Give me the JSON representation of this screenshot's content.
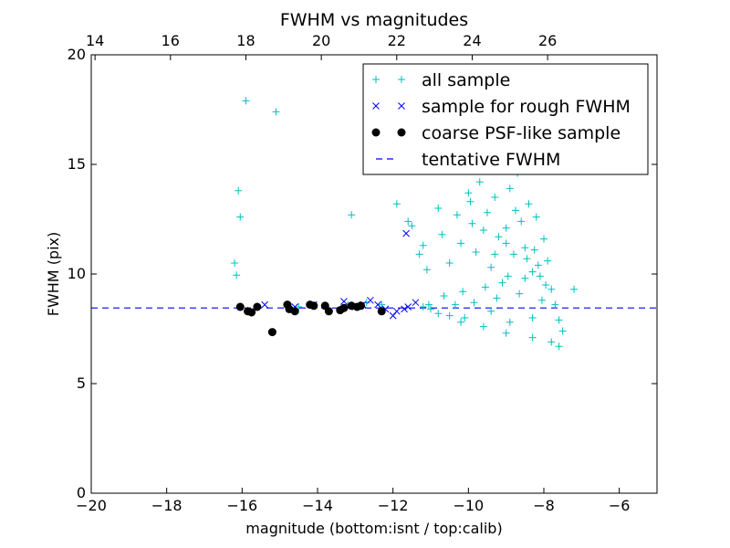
{
  "chart_data": {
    "type": "scatter",
    "title": "FWHM vs magnitudes",
    "xlabel": "magnitude (bottom:isnt / top:calib)",
    "ylabel": "FWHM (pix)",
    "xlim": [
      -20,
      -5
    ],
    "ylim": [
      0,
      20
    ],
    "x_ticks": [
      -20,
      -18,
      -16,
      -14,
      -12,
      -10,
      -8,
      -6
    ],
    "x_tick_labels": [
      "−20",
      "−18",
      "−16",
      "−14",
      "−12",
      "−10",
      "−8",
      "−6"
    ],
    "y_ticks": [
      0,
      5,
      10,
      15,
      20
    ],
    "y_tick_labels": [
      "0",
      "5",
      "10",
      "15",
      "20"
    ],
    "top_axis": {
      "offset": 33.9,
      "ticks": [
        14,
        16,
        18,
        20,
        22,
        24,
        26
      ],
      "tick_labels": [
        "14",
        "16",
        "18",
        "20",
        "22",
        "24",
        "26"
      ]
    },
    "grid": false,
    "legend_position": "upper-right",
    "legend": [
      {
        "label": "all sample",
        "marker": "plus",
        "color": "#00bfbf"
      },
      {
        "label": "sample for rough FWHM",
        "marker": "x",
        "color": "#0000ff"
      },
      {
        "label": "coarse PSF-like sample",
        "marker": "dot",
        "color": "#000000"
      },
      {
        "label": "tentative FWHM",
        "marker": "dash",
        "color": "#0000ff"
      }
    ],
    "series": [
      {
        "name": "all sample",
        "marker": "plus",
        "color": "#00bfbf",
        "points": [
          [
            -15.9,
            17.9
          ],
          [
            -15.1,
            17.4
          ],
          [
            -16.1,
            13.8
          ],
          [
            -16.05,
            12.6
          ],
          [
            -16.2,
            10.5
          ],
          [
            -16.15,
            9.95
          ],
          [
            -13.1,
            12.7
          ],
          [
            -11.9,
            13.2
          ],
          [
            -11.6,
            12.4
          ],
          [
            -11.5,
            12.2
          ],
          [
            -11.3,
            10.9
          ],
          [
            -11.2,
            11.3
          ],
          [
            -11.1,
            10.2
          ],
          [
            -10.8,
            13.0
          ],
          [
            -10.7,
            11.8
          ],
          [
            -10.5,
            10.5
          ],
          [
            -10.3,
            12.7
          ],
          [
            -10.2,
            11.4
          ],
          [
            -10.0,
            13.7
          ],
          [
            -9.9,
            12.3
          ],
          [
            -9.8,
            11.0
          ],
          [
            -9.7,
            14.2
          ],
          [
            -9.5,
            12.8
          ],
          [
            -9.4,
            10.3
          ],
          [
            -9.3,
            13.5
          ],
          [
            -9.2,
            11.7
          ],
          [
            -9.1,
            9.6
          ],
          [
            -9.0,
            12.1
          ],
          [
            -8.9,
            13.9
          ],
          [
            -8.8,
            10.9
          ],
          [
            -8.7,
            14.6
          ],
          [
            -8.6,
            12.4
          ],
          [
            -8.5,
            11.2
          ],
          [
            -8.4,
            13.2
          ],
          [
            -8.3,
            10.1
          ],
          [
            -8.2,
            12.6
          ],
          [
            -8.1,
            9.9
          ],
          [
            -8.0,
            11.6
          ],
          [
            -7.9,
            10.6
          ],
          [
            -7.8,
            9.3
          ],
          [
            -7.7,
            8.6
          ],
          [
            -7.6,
            7.9
          ],
          [
            -7.5,
            7.4
          ],
          [
            -7.2,
            9.3
          ],
          [
            -7.6,
            6.7
          ],
          [
            -7.8,
            6.9
          ],
          [
            -8.3,
            7.1
          ],
          [
            -9.0,
            7.3
          ],
          [
            -9.6,
            7.6
          ],
          [
            -10.2,
            7.8
          ],
          [
            -10.5,
            8.1
          ],
          [
            -11.0,
            8.4
          ],
          [
            -12.3,
            8.6
          ],
          [
            -12.7,
            8.7
          ],
          [
            -13.2,
            8.6
          ],
          [
            -14.5,
            8.5
          ],
          [
            -11.2,
            8.5
          ],
          [
            -10.8,
            8.2
          ],
          [
            -10.1,
            8.0
          ],
          [
            -9.4,
            8.3
          ],
          [
            -8.9,
            7.8
          ],
          [
            -8.3,
            8.0
          ],
          [
            -9.95,
            13.3
          ],
          [
            -9.6,
            12.0
          ],
          [
            -9.3,
            10.9
          ],
          [
            -9.0,
            11.4
          ],
          [
            -8.75,
            12.9
          ],
          [
            -8.5,
            9.8
          ],
          [
            -8.25,
            11.1
          ],
          [
            -8.05,
            8.8
          ],
          [
            -7.95,
            9.5
          ],
          [
            -8.15,
            10.4
          ],
          [
            -8.45,
            10.7
          ],
          [
            -8.65,
            9.1
          ],
          [
            -8.95,
            9.9
          ],
          [
            -9.25,
            8.9
          ],
          [
            -9.55,
            9.4
          ],
          [
            -9.85,
            8.7
          ],
          [
            -10.15,
            9.2
          ],
          [
            -10.35,
            8.6
          ],
          [
            -10.65,
            9.0
          ],
          [
            -11.05,
            8.6
          ]
        ]
      },
      {
        "name": "sample for rough FWHM",
        "marker": "x",
        "color": "#0000ff",
        "points": [
          [
            -15.4,
            8.6
          ],
          [
            -14.6,
            8.5
          ],
          [
            -14.1,
            8.6
          ],
          [
            -13.3,
            8.75
          ],
          [
            -13.0,
            8.5
          ],
          [
            -12.6,
            8.8
          ],
          [
            -12.4,
            8.6
          ],
          [
            -12.2,
            8.4
          ],
          [
            -12.0,
            8.1
          ],
          [
            -11.9,
            8.3
          ],
          [
            -11.7,
            8.4
          ],
          [
            -11.6,
            8.5
          ],
          [
            -11.4,
            8.7
          ],
          [
            -12.8,
            8.6
          ],
          [
            -11.65,
            11.85
          ]
        ]
      },
      {
        "name": "coarse PSF-like sample",
        "marker": "dot",
        "color": "#000000",
        "points": [
          [
            -15.85,
            8.3
          ],
          [
            -15.6,
            8.5
          ],
          [
            -15.2,
            7.35
          ],
          [
            -14.8,
            8.6
          ],
          [
            -14.75,
            8.4
          ],
          [
            -14.6,
            8.3
          ],
          [
            -14.2,
            8.6
          ],
          [
            -14.1,
            8.55
          ],
          [
            -13.8,
            8.55
          ],
          [
            -13.7,
            8.3
          ],
          [
            -13.4,
            8.35
          ],
          [
            -13.3,
            8.45
          ],
          [
            -13.1,
            8.55
          ],
          [
            -12.95,
            8.5
          ],
          [
            -12.85,
            8.55
          ],
          [
            -12.3,
            8.3
          ],
          [
            -16.05,
            8.5
          ],
          [
            -15.75,
            8.25
          ]
        ]
      }
    ],
    "reference_line": {
      "name": "tentative FWHM",
      "y": 8.45,
      "color": "#0000ff",
      "style": "dashed"
    }
  }
}
